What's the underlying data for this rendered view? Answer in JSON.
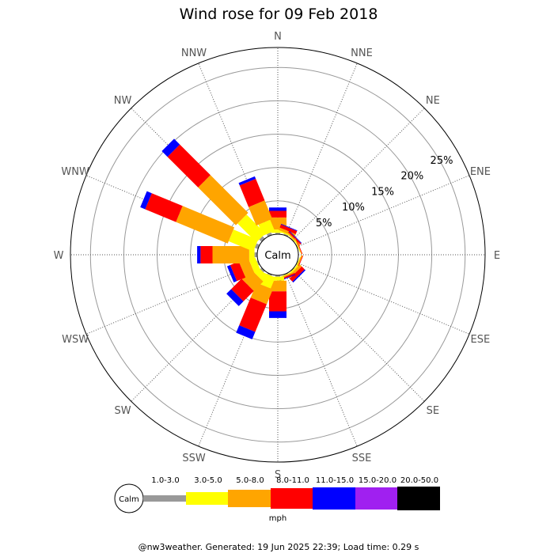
{
  "chart_data": {
    "type": "windrose",
    "title": "Wind rose for 09 Feb 2018",
    "directions": [
      "N",
      "NNE",
      "NE",
      "ENE",
      "E",
      "ESE",
      "SE",
      "SSE",
      "S",
      "SSW",
      "SW",
      "WSW",
      "W",
      "WNW",
      "NW",
      "NNW"
    ],
    "radial_ticks": [
      "5%",
      "10%",
      "15%",
      "20%",
      "25%"
    ],
    "radial_tick_values": [
      5,
      10,
      15,
      20,
      25
    ],
    "calm_label": "Calm",
    "unit_label": "mph",
    "bins": [
      {
        "label": "1.0-3.0",
        "color": "#999999"
      },
      {
        "label": "3.0-5.0",
        "color": "#ffff00"
      },
      {
        "label": "5.0-8.0",
        "color": "#ffa500"
      },
      {
        "label": "8.0-11.0",
        "color": "#ff0000"
      },
      {
        "label": "11.0-15.0",
        "color": "#0000ff"
      },
      {
        "label": "15.0-20.0",
        "color": "#a020f0"
      },
      {
        "label": "20.0-50.0",
        "color": "#000000"
      }
    ],
    "series": [
      {
        "direction": "N",
        "values": [
          0.2,
          0.5,
          1.8,
          1.0,
          0.5,
          0,
          0
        ]
      },
      {
        "direction": "NNE",
        "values": [
          0.2,
          0.2,
          0.4,
          0.5,
          0.1,
          0,
          0
        ]
      },
      {
        "direction": "NE",
        "values": [
          0.1,
          0.1,
          0.2,
          0.2,
          0.1,
          0,
          0
        ]
      },
      {
        "direction": "ENE",
        "values": [
          0.1,
          0.1,
          0.1,
          0.1,
          0,
          0,
          0
        ]
      },
      {
        "direction": "E",
        "values": [
          0,
          0,
          0,
          0,
          0,
          0,
          0
        ]
      },
      {
        "direction": "ESE",
        "values": [
          0.1,
          0.1,
          0.2,
          0.1,
          0,
          0,
          0
        ]
      },
      {
        "direction": "SE",
        "values": [
          0.1,
          0.2,
          0.4,
          0.6,
          0.2,
          0,
          0
        ]
      },
      {
        "direction": "SSE",
        "values": [
          0.1,
          0.1,
          0.2,
          0.2,
          0.1,
          0,
          0
        ]
      },
      {
        "direction": "S",
        "values": [
          0.2,
          0.6,
          1.6,
          3.0,
          1.0,
          0,
          0
        ]
      },
      {
        "direction": "SSW",
        "values": [
          0.2,
          1.8,
          2.4,
          4.5,
          1.2,
          0,
          0
        ]
      },
      {
        "direction": "SW",
        "values": [
          0.3,
          1.0,
          2.0,
          2.2,
          1.0,
          0,
          0
        ]
      },
      {
        "direction": "WSW",
        "values": [
          0.2,
          1.0,
          1.5,
          1.4,
          0.5,
          0,
          0
        ]
      },
      {
        "direction": "W",
        "values": [
          0.4,
          0.8,
          5.5,
          1.8,
          0.5,
          0,
          0
        ]
      },
      {
        "direction": "WNW",
        "values": [
          0.5,
          4.0,
          8.4,
          5.0,
          0.8,
          0,
          0
        ]
      },
      {
        "direction": "NW",
        "values": [
          0.5,
          4.0,
          8.0,
          6.5,
          1.2,
          0,
          0
        ]
      },
      {
        "direction": "NNW",
        "values": [
          0.4,
          1.8,
          3.0,
          3.5,
          0.4,
          0,
          0
        ]
      }
    ],
    "max_percent": 28,
    "grid": true
  },
  "footer": "@nw3weather. Generated: 19 Jun 2025 22:39; Load time: 0.29 s"
}
